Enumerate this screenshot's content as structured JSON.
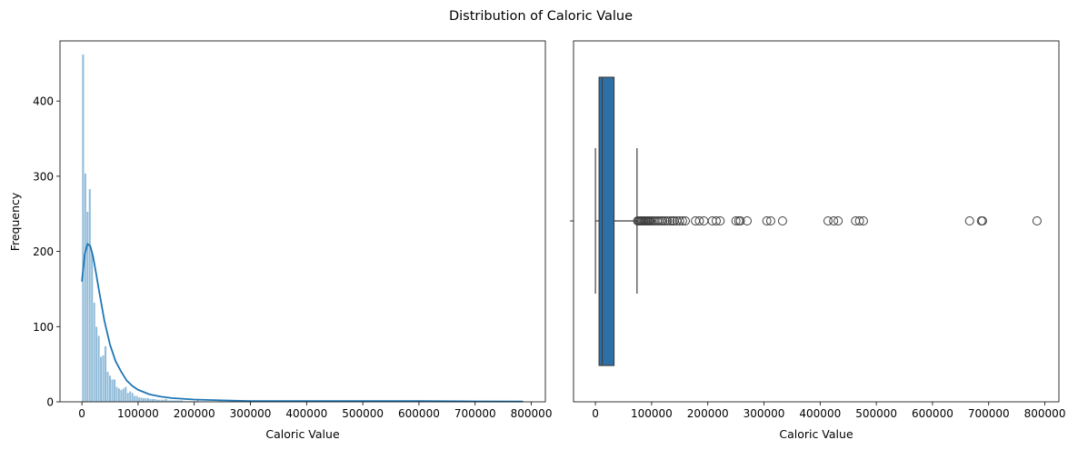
{
  "figure": {
    "title": "Distribution of Caloric Value"
  },
  "colors": {
    "bar": "#1f77b4",
    "bar_alpha": 0.5,
    "kde": "#1f77b4",
    "box": "#2d70a8",
    "line": "#3f3f3f"
  },
  "chart_data": [
    {
      "type": "histogram",
      "title": "",
      "xlabel": "Caloric Value",
      "ylabel": "Frequency",
      "xlim": [
        -39000,
        825000
      ],
      "ylim": [
        0,
        480
      ],
      "x_ticks": [
        0,
        100000,
        200000,
        300000,
        400000,
        500000,
        600000,
        700000,
        800000
      ],
      "x_tick_labels": [
        "0",
        "100000",
        "200000",
        "300000",
        "400000",
        "500000",
        "600000",
        "700000",
        "800000"
      ],
      "y_ticks": [
        0,
        100,
        200,
        300,
        400
      ],
      "y_tick_labels": [
        "0",
        "100",
        "200",
        "300",
        "400"
      ],
      "bin_start": 0,
      "bin_width": 4000,
      "counts": [
        462,
        304,
        253,
        283,
        200,
        132,
        100,
        88,
        60,
        62,
        74,
        40,
        35,
        30,
        30,
        20,
        18,
        16,
        18,
        20,
        12,
        14,
        12,
        8,
        8,
        6,
        6,
        5,
        5,
        5,
        4,
        4,
        4,
        3,
        3,
        3,
        3,
        4,
        2,
        2,
        2,
        2,
        2,
        2,
        2,
        1,
        1,
        1,
        1,
        1,
        1,
        2,
        1,
        1,
        1,
        1,
        1,
        1,
        1,
        1,
        1,
        2,
        1,
        1
      ],
      "kde": {
        "x": [
          0,
          5000,
          10000,
          15000,
          20000,
          25000,
          30000,
          40000,
          50000,
          60000,
          70000,
          80000,
          90000,
          100000,
          120000,
          140000,
          160000,
          200000,
          250000,
          300000,
          400000,
          500000,
          600000,
          700000,
          785000
        ],
        "y": [
          160,
          196,
          210,
          207,
          193,
          172,
          150,
          108,
          76,
          54,
          40,
          28,
          21,
          16,
          10,
          7,
          5,
          3,
          2,
          1,
          1,
          1,
          1,
          0.6,
          0.5
        ]
      }
    },
    {
      "type": "box",
      "title": "",
      "xlabel": "Caloric Value",
      "ylabel": "",
      "xlim": [
        -39000,
        825000
      ],
      "x_ticks": [
        0,
        100000,
        200000,
        300000,
        400000,
        500000,
        600000,
        700000,
        800000
      ],
      "x_tick_labels": [
        "0",
        "100000",
        "200000",
        "300000",
        "400000",
        "500000",
        "600000",
        "700000",
        "800000"
      ],
      "whisker_low": 0,
      "q1": 6500,
      "median": 12000,
      "q3": 33000,
      "whisker_high": 74000,
      "outliers": [
        75000,
        77000,
        79000,
        81000,
        83000,
        85000,
        87000,
        89000,
        91000,
        93000,
        95000,
        97000,
        100000,
        103000,
        106000,
        110000,
        113000,
        117000,
        120000,
        124000,
        128000,
        133000,
        137000,
        140000,
        145000,
        150000,
        155000,
        160000,
        178000,
        185000,
        193000,
        208000,
        215000,
        222000,
        250000,
        255000,
        258000,
        270000,
        305000,
        312000,
        333000,
        414000,
        424000,
        432000,
        463000,
        470000,
        477000,
        666000,
        687000,
        689000,
        786000
      ]
    }
  ]
}
